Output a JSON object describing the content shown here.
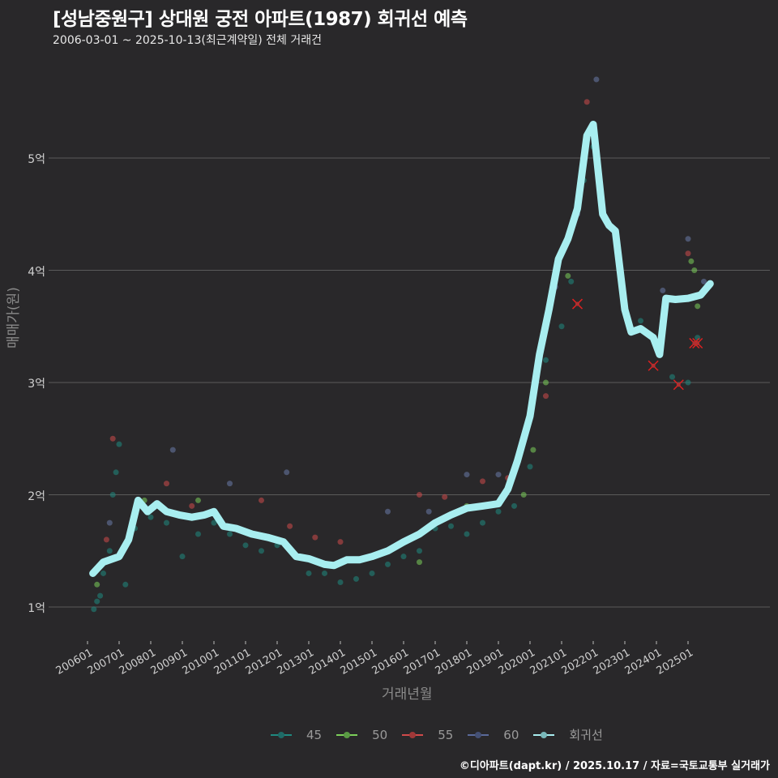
{
  "title": "[성남중원구] 상대원 궁전 아파트(1987) 회귀선 예측",
  "subtitle": "2006-03-01 ~ 2025-10-13(최근계약일) 전체 거래건",
  "caption": "©디아파트(dapt.kr) / 2025.10.17 / 자료=국토교통부 실거래가",
  "colors": {
    "background": "#29282a",
    "grid": "#5a5a5a",
    "s45": "#1f8a80",
    "s50": "#7ccf5a",
    "s55": "#d04a4a",
    "s60": "#5a6a9a",
    "regression": "#a8eef0",
    "outlier_x": "#e02020"
  },
  "legend": [
    {
      "label": "45",
      "color": "#1f8a80"
    },
    {
      "label": "50",
      "color": "#7ccf5a"
    },
    {
      "label": "55",
      "color": "#d04a4a"
    },
    {
      "label": "60",
      "color": "#5a6a9a"
    },
    {
      "label": "회귀선",
      "color": "#a8eef0"
    }
  ],
  "chart_data": {
    "type": "scatter",
    "title": "[성남중원구] 상대원 궁전 아파트(1987) 회귀선 예측",
    "subtitle": "2006-03-01 ~ 2025-10-13(최근계약일) 전체 거래건",
    "xlabel": "거래년월",
    "ylabel": "매매가(원)",
    "x_ticks": [
      "200601",
      "200701",
      "200801",
      "200901",
      "201001",
      "201101",
      "201201",
      "201301",
      "201401",
      "201501",
      "201601",
      "201701",
      "201801",
      "201901",
      "202001",
      "202101",
      "202201",
      "202301",
      "202401",
      "202501"
    ],
    "y_ticks": [
      "1억",
      "2억",
      "3억",
      "4억",
      "5억"
    ],
    "y_tick_values": [
      1.0,
      2.0,
      3.0,
      4.0,
      5.0
    ],
    "ylim": [
      0.75,
      5.75
    ],
    "grid": true,
    "legend_position": "bottom",
    "series_names": [
      "45",
      "50",
      "55",
      "60",
      "회귀선"
    ],
    "regression_line": {
      "name": "회귀선",
      "x": [
        2006.17,
        2006.5,
        2007.0,
        2007.3,
        2007.6,
        2007.9,
        2008.2,
        2008.5,
        2008.9,
        2009.3,
        2009.7,
        2010.0,
        2010.3,
        2010.7,
        2011.2,
        2011.7,
        2012.2,
        2012.6,
        2013.0,
        2013.5,
        2013.8,
        2014.2,
        2014.6,
        2015.0,
        2015.5,
        2016.0,
        2016.5,
        2017.0,
        2017.5,
        2018.0,
        2018.5,
        2019.0,
        2019.3,
        2019.6,
        2020.0,
        2020.3,
        2020.6,
        2020.9,
        2021.2,
        2021.5,
        2021.8,
        2022.0,
        2022.3,
        2022.5,
        2022.7,
        2023.0,
        2023.2,
        2023.5,
        2023.9,
        2024.1,
        2024.3,
        2024.6,
        2025.0,
        2025.4,
        2025.7
      ],
      "y": [
        1.3,
        1.4,
        1.45,
        1.6,
        1.95,
        1.85,
        1.92,
        1.85,
        1.82,
        1.8,
        1.82,
        1.85,
        1.72,
        1.7,
        1.65,
        1.62,
        1.58,
        1.45,
        1.43,
        1.38,
        1.37,
        1.42,
        1.42,
        1.45,
        1.5,
        1.58,
        1.65,
        1.75,
        1.82,
        1.88,
        1.9,
        1.92,
        2.05,
        2.3,
        2.7,
        3.25,
        3.65,
        4.1,
        4.28,
        4.55,
        5.2,
        5.3,
        4.5,
        4.4,
        4.35,
        3.65,
        3.45,
        3.48,
        3.4,
        3.25,
        3.75,
        3.74,
        3.75,
        3.78,
        3.88
      ]
    },
    "series": [
      {
        "name": "45",
        "points": [
          [
            2006.2,
            0.98
          ],
          [
            2006.3,
            1.05
          ],
          [
            2006.4,
            1.1
          ],
          [
            2006.5,
            1.3
          ],
          [
            2006.7,
            1.5
          ],
          [
            2006.8,
            2.0
          ],
          [
            2006.9,
            2.2
          ],
          [
            2007.0,
            2.45
          ],
          [
            2007.2,
            1.2
          ],
          [
            2007.5,
            1.7
          ],
          [
            2008.0,
            1.8
          ],
          [
            2008.5,
            1.75
          ],
          [
            2009.0,
            1.45
          ],
          [
            2009.5,
            1.65
          ],
          [
            2010.0,
            1.75
          ],
          [
            2010.5,
            1.65
          ],
          [
            2011.0,
            1.55
          ],
          [
            2011.5,
            1.5
          ],
          [
            2012.0,
            1.55
          ],
          [
            2013.0,
            1.3
          ],
          [
            2013.5,
            1.3
          ],
          [
            2014.0,
            1.22
          ],
          [
            2014.5,
            1.25
          ],
          [
            2015.0,
            1.3
          ],
          [
            2015.5,
            1.38
          ],
          [
            2016.0,
            1.45
          ],
          [
            2016.5,
            1.5
          ],
          [
            2017.0,
            1.7
          ],
          [
            2017.5,
            1.72
          ],
          [
            2018.0,
            1.65
          ],
          [
            2018.5,
            1.75
          ],
          [
            2019.0,
            1.85
          ],
          [
            2019.5,
            1.9
          ],
          [
            2020.0,
            2.25
          ],
          [
            2020.5,
            3.2
          ],
          [
            2021.0,
            3.5
          ],
          [
            2021.3,
            3.9
          ],
          [
            2021.7,
            4.8
          ],
          [
            2022.0,
            5.1
          ],
          [
            2023.5,
            3.55
          ],
          [
            2024.5,
            3.05
          ],
          [
            2025.0,
            3.0
          ],
          [
            2025.3,
            3.4
          ]
        ]
      },
      {
        "name": "50",
        "points": [
          [
            2006.3,
            1.2
          ],
          [
            2007.8,
            1.95
          ],
          [
            2009.5,
            1.95
          ],
          [
            2016.5,
            1.4
          ],
          [
            2018.0,
            1.9
          ],
          [
            2019.8,
            2.0
          ],
          [
            2020.1,
            2.4
          ],
          [
            2020.5,
            3.0
          ],
          [
            2021.2,
            3.95
          ],
          [
            2025.1,
            4.08
          ],
          [
            2025.2,
            4.0
          ],
          [
            2025.3,
            3.68
          ]
        ]
      },
      {
        "name": "55",
        "points": [
          [
            2006.6,
            1.6
          ],
          [
            2006.8,
            2.5
          ],
          [
            2008.5,
            2.1
          ],
          [
            2009.3,
            1.9
          ],
          [
            2011.5,
            1.95
          ],
          [
            2012.4,
            1.72
          ],
          [
            2013.2,
            1.62
          ],
          [
            2014.0,
            1.58
          ],
          [
            2016.5,
            2.0
          ],
          [
            2017.3,
            1.98
          ],
          [
            2018.5,
            2.12
          ],
          [
            2019.3,
            2.15
          ],
          [
            2020.5,
            2.88
          ],
          [
            2021.8,
            5.5
          ],
          [
            2025.0,
            4.15
          ]
        ]
      },
      {
        "name": "60",
        "points": [
          [
            2006.7,
            1.75
          ],
          [
            2007.3,
            1.6
          ],
          [
            2008.7,
            2.4
          ],
          [
            2010.5,
            2.1
          ],
          [
            2012.3,
            2.2
          ],
          [
            2015.5,
            1.85
          ],
          [
            2016.8,
            1.85
          ],
          [
            2018.0,
            2.18
          ],
          [
            2019.0,
            2.18
          ],
          [
            2020.8,
            3.85
          ],
          [
            2021.5,
            4.5
          ],
          [
            2022.1,
            5.7
          ],
          [
            2024.2,
            3.82
          ],
          [
            2025.0,
            4.28
          ],
          [
            2025.5,
            3.9
          ]
        ]
      }
    ],
    "outliers_x_markers": [
      [
        2021.5,
        3.7
      ],
      [
        2023.9,
        3.15
      ],
      [
        2024.7,
        2.98
      ],
      [
        2025.2,
        3.35
      ],
      [
        2025.3,
        3.35
      ]
    ]
  },
  "axes": {
    "xlabel": "거래년월",
    "ylabel": "매매가(원)"
  }
}
